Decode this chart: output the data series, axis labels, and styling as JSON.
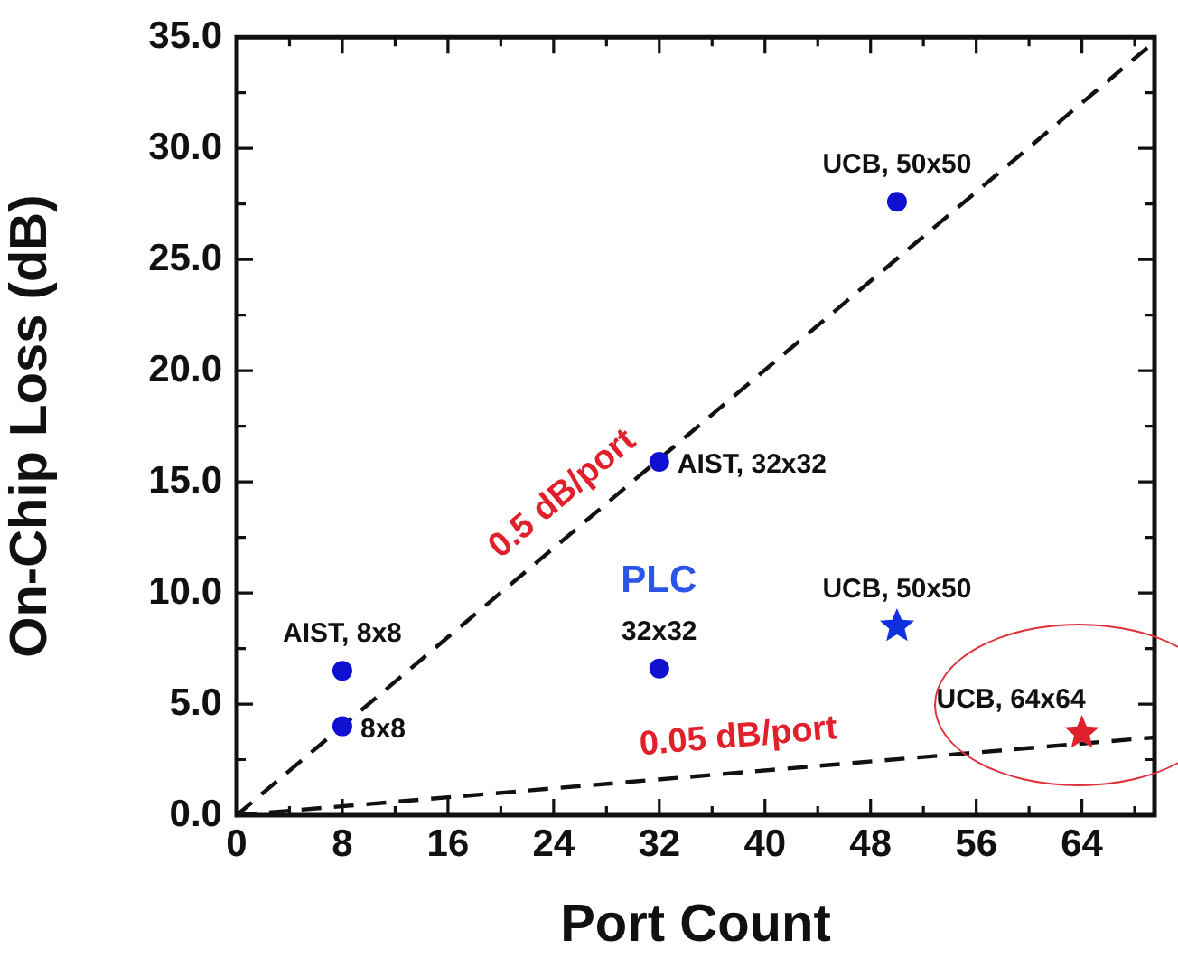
{
  "chart_data": {
    "type": "scatter",
    "xlabel": "Port Count",
    "ylabel": "On-Chip Loss (dB)",
    "xlim": [
      0,
      69.5
    ],
    "ylim": [
      0,
      35
    ],
    "xticks": [
      0,
      {
        "value": 4,
        "label": null
      },
      8,
      {
        "value": 12,
        "label": null
      },
      16,
      {
        "value": 20,
        "label": null
      },
      24,
      {
        "value": 28,
        "label": null
      },
      32,
      {
        "value": 36,
        "label": null
      },
      40,
      {
        "value": 44,
        "label": null
      },
      48,
      {
        "value": 52,
        "label": null
      },
      56,
      {
        "value": 60,
        "label": null
      },
      64,
      {
        "value": 68,
        "label": null
      }
    ],
    "yticks": [
      {
        "value": 0,
        "label": "0.0"
      },
      {
        "value": 2.5,
        "label": null
      },
      {
        "value": 5,
        "label": "5.0"
      },
      {
        "value": 7.5,
        "label": null
      },
      {
        "value": 10,
        "label": "10.0"
      },
      {
        "value": 12.5,
        "label": null
      },
      {
        "value": 15,
        "label": "15.0"
      },
      {
        "value": 17.5,
        "label": null
      },
      {
        "value": 20,
        "label": "20.0"
      },
      {
        "value": 22.5,
        "label": null
      },
      {
        "value": 25,
        "label": "25.0"
      },
      {
        "value": 27.5,
        "label": null
      },
      {
        "value": 30,
        "label": "30.0"
      },
      {
        "value": 32.5,
        "label": null
      },
      {
        "value": 35,
        "label": "35.0"
      }
    ],
    "grid": false,
    "legend": false,
    "series": [
      {
        "marker": "circle",
        "color": "#1010d0",
        "x": [
          8,
          8,
          32,
          32,
          50
        ],
        "values": [
          6.5,
          4.0,
          6.6,
          15.9,
          27.6
        ]
      },
      {
        "marker": "star",
        "color": "#1030e0",
        "x": [
          50
        ],
        "values": [
          8.5
        ]
      },
      {
        "marker": "star",
        "color": "#e0202a",
        "x": [
          64
        ],
        "values": [
          3.7
        ]
      },
      {
        "type": "line",
        "name": "0.5 dB/port",
        "marker": "none",
        "line_style": "dashed",
        "color": "#111111",
        "x": [
          0,
          69.5
        ],
        "values": [
          0,
          34.8
        ]
      },
      {
        "type": "line",
        "name": "0.05 dB/port",
        "marker": "none",
        "line_style": "dashed",
        "color": "#111111",
        "x": [
          0,
          69.5
        ],
        "values": [
          0,
          3.5
        ]
      }
    ],
    "annotations": [
      {
        "text": "AIST, 8x8",
        "x": 8,
        "y": 6.5
      },
      {
        "text": "8x8",
        "x": 8,
        "y": 4.0
      },
      {
        "text": "32x32",
        "x": 32,
        "y": 6.6
      },
      {
        "text": "AIST, 32x32",
        "x": 32,
        "y": 15.9
      },
      {
        "text": "UCB, 50x50",
        "x": 50,
        "y": 27.6
      },
      {
        "text": "UCB, 50x50",
        "x": 50,
        "y": 8.5
      },
      {
        "text": "UCB, 64x64",
        "x": 64,
        "y": 3.7
      },
      "PLC"
    ]
  }
}
